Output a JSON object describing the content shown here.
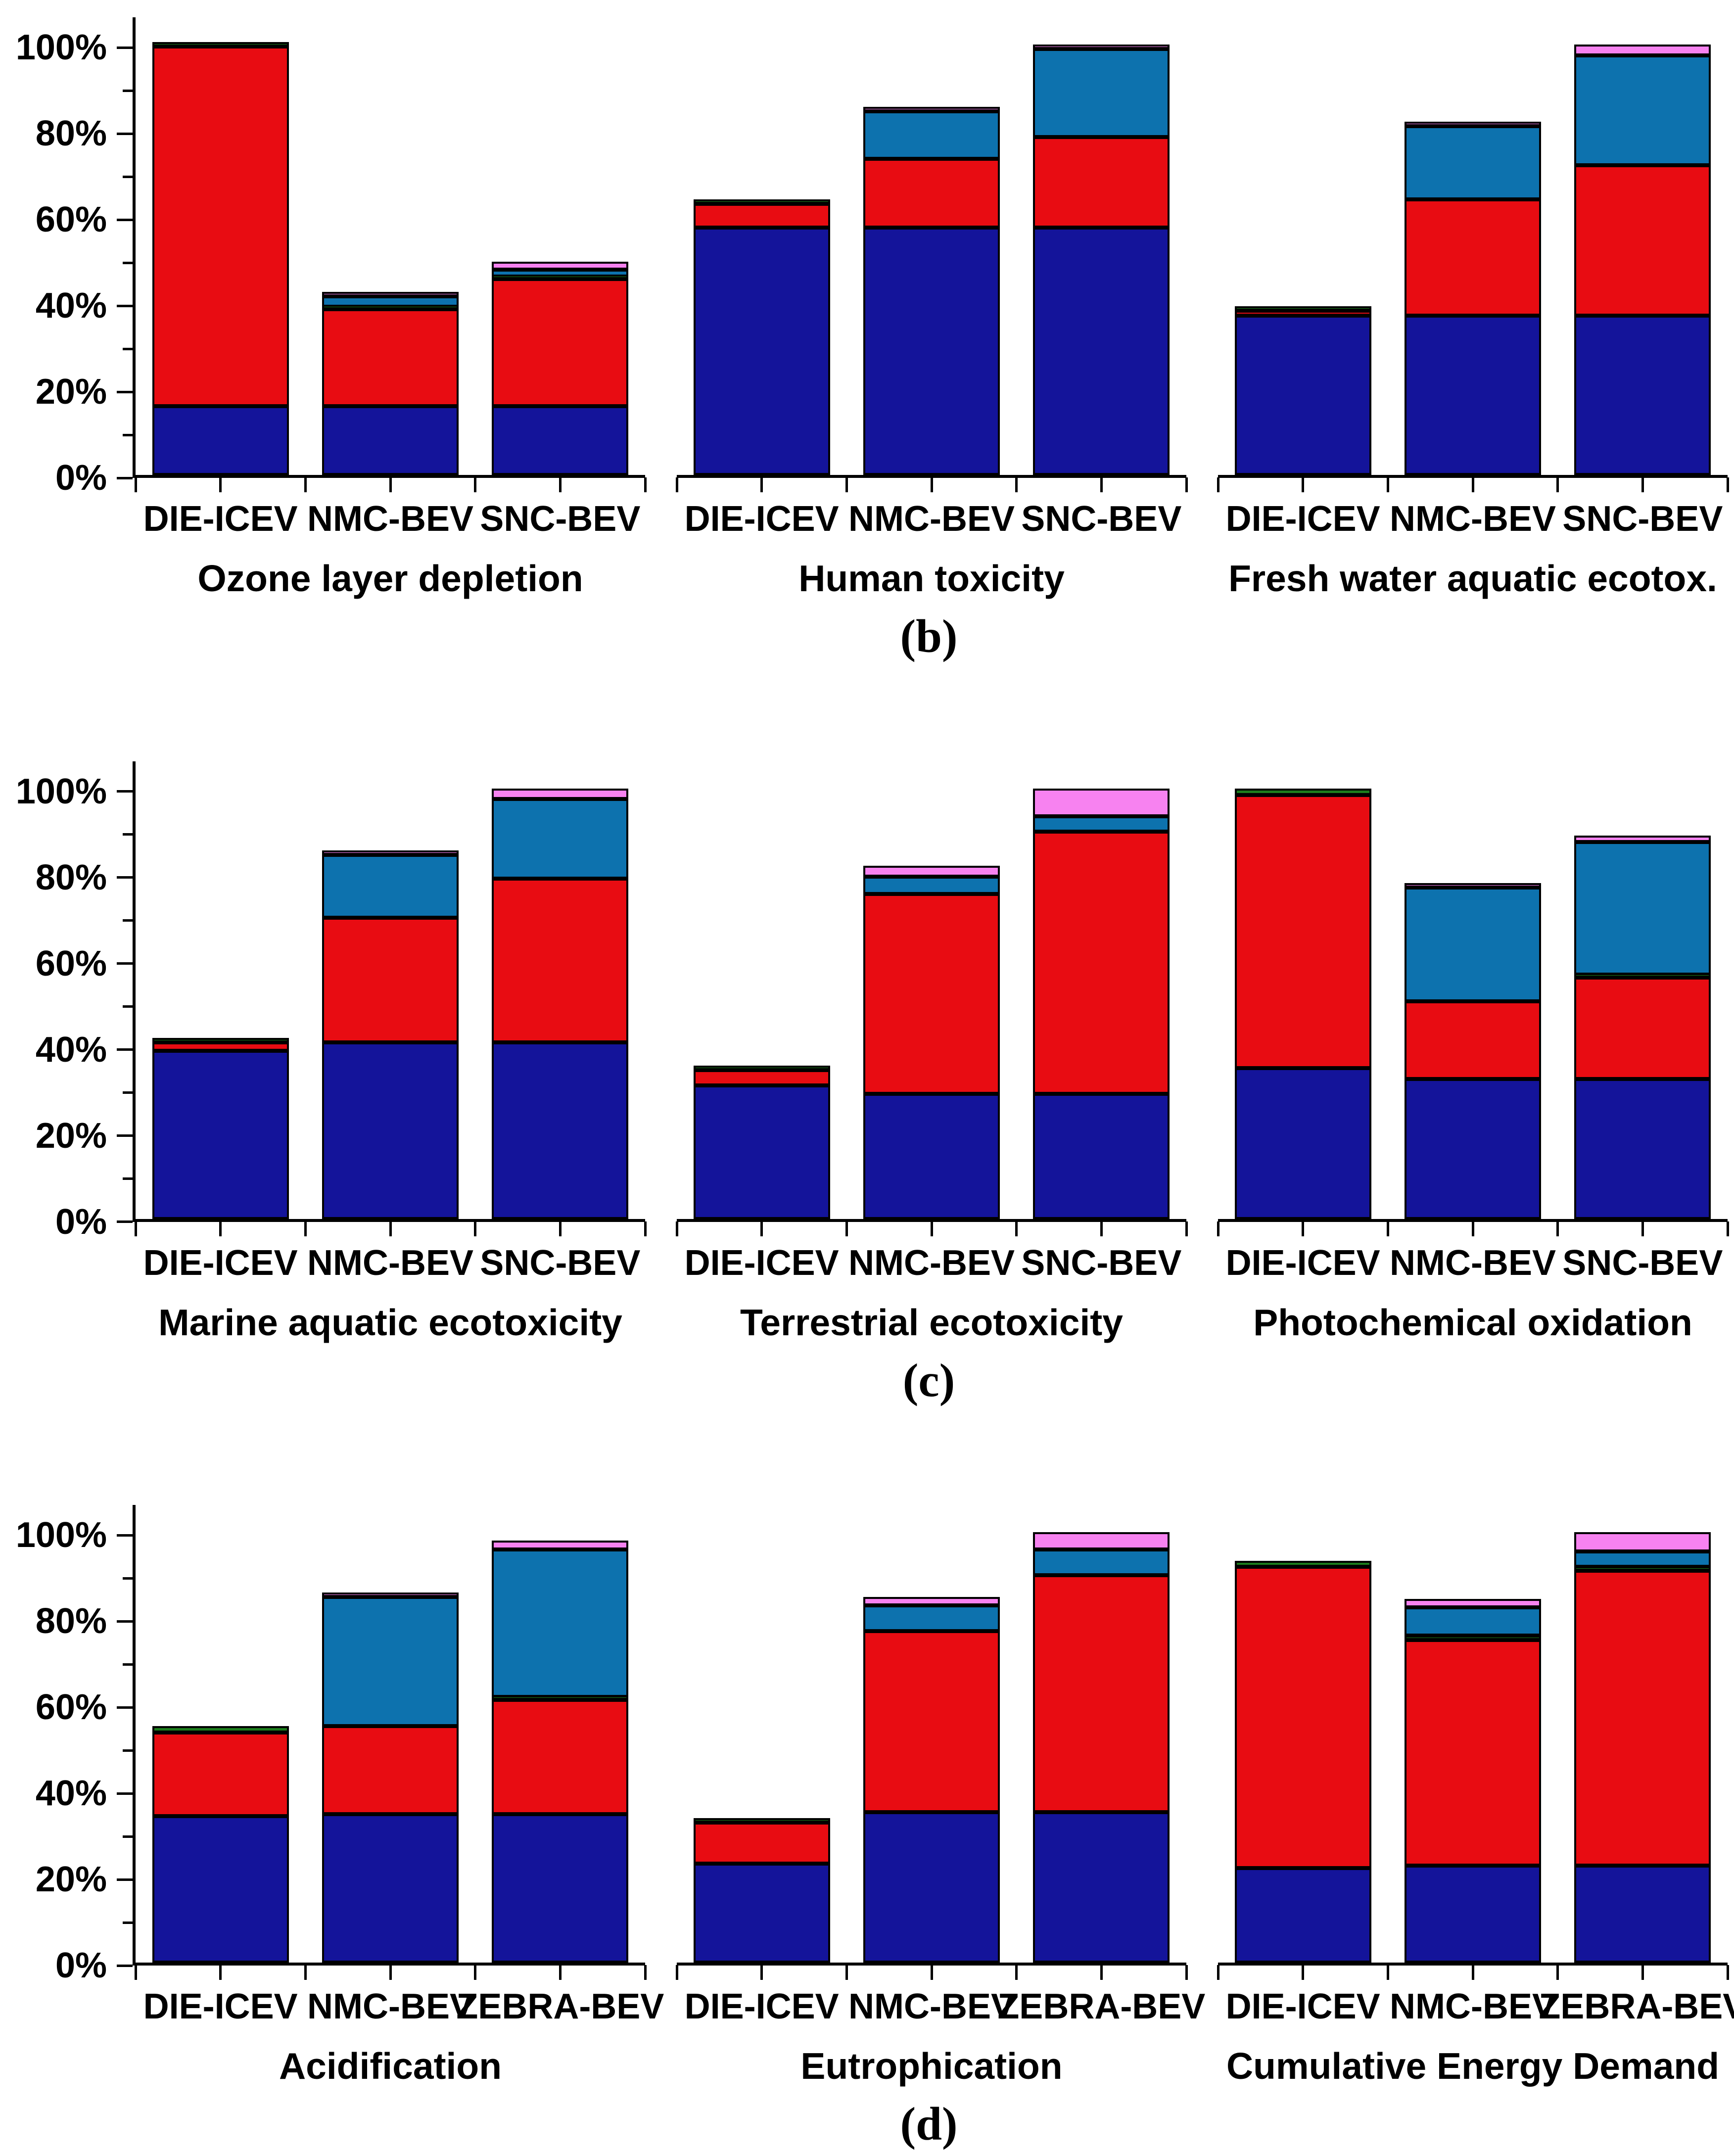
{
  "y_axis": {
    "tick_labels": [
      "0%",
      "20%",
      "40%",
      "60%",
      "80%",
      "100%"
    ],
    "major_step": 20,
    "minor_step": 10
  },
  "colors": {
    "navy": "#14149A",
    "red": "#E80C12",
    "green": "#1C7C1C",
    "steel_blue": "#0D72AE",
    "magenta_pink": "#F782F0",
    "axis": "#000000"
  },
  "rows": [
    {
      "id": "b",
      "sub_label": "(b)",
      "chart_indexes": [
        0,
        1,
        2
      ]
    },
    {
      "id": "c",
      "sub_label": "(c)",
      "chart_indexes": [
        3,
        4,
        5
      ]
    },
    {
      "id": "d",
      "sub_label": "(d)",
      "chart_indexes": [
        6,
        7,
        8
      ]
    }
  ],
  "chart_data": [
    {
      "type": "bar",
      "stacked": true,
      "title": "Ozone layer depletion",
      "ylim": [
        0,
        100
      ],
      "grid": false,
      "legend": "none",
      "categories": [
        "DIE-ICEV",
        "NMC-BEV",
        "SNC-BEV"
      ],
      "series": [
        {
          "name": "navy",
          "color": "#14149A",
          "values": [
            16,
            16,
            16
          ]
        },
        {
          "name": "red",
          "color": "#E80C12",
          "values": [
            83.5,
            22.5,
            29.5
          ]
        },
        {
          "name": "green",
          "color": "#1C7C1C",
          "values": [
            1,
            0.6,
            0.6
          ]
        },
        {
          "name": "steel-blue",
          "color": "#0D72AE",
          "values": [
            0,
            2.4,
            1.6
          ]
        },
        {
          "name": "magenta-pink",
          "color": "#F782F0",
          "values": [
            0,
            0.8,
            1.8
          ]
        }
      ]
    },
    {
      "type": "bar",
      "stacked": true,
      "title": "Human toxicity",
      "ylim": [
        0,
        100
      ],
      "grid": false,
      "legend": "none",
      "categories": [
        "DIE-ICEV",
        "NMC-BEV",
        "SNC-BEV"
      ],
      "series": [
        {
          "name": "navy",
          "color": "#14149A",
          "values": [
            57.5,
            57.5,
            57.5
          ]
        },
        {
          "name": "red",
          "color": "#E80C12",
          "values": [
            5.5,
            16,
            21
          ]
        },
        {
          "name": "green",
          "color": "#1C7C1C",
          "values": [
            0.5,
            0,
            0
          ]
        },
        {
          "name": "steel-blue",
          "color": "#0D72AE",
          "values": [
            0,
            11,
            20.5
          ]
        },
        {
          "name": "magenta-pink",
          "color": "#F782F0",
          "values": [
            0,
            0.5,
            1
          ]
        }
      ]
    },
    {
      "type": "bar",
      "stacked": true,
      "title": "Fresh water aquatic ecotox.",
      "ylim": [
        0,
        100
      ],
      "grid": false,
      "legend": "none",
      "categories": [
        "DIE-ICEV",
        "NMC-BEV",
        "SNC-BEV"
      ],
      "series": [
        {
          "name": "navy",
          "color": "#14149A",
          "values": [
            37,
            37,
            37
          ]
        },
        {
          "name": "red",
          "color": "#E80C12",
          "values": [
            1.2,
            27,
            35
          ]
        },
        {
          "name": "green",
          "color": "#1C7C1C",
          "values": [
            0.8,
            0,
            0
          ]
        },
        {
          "name": "steel-blue",
          "color": "#0D72AE",
          "values": [
            0,
            17,
            25.5
          ]
        },
        {
          "name": "magenta-pink",
          "color": "#F782F0",
          "values": [
            0,
            1,
            2.5
          ]
        }
      ]
    },
    {
      "type": "bar",
      "stacked": true,
      "title": "Marine aquatic ecotoxicity",
      "ylim": [
        0,
        100
      ],
      "grid": false,
      "legend": "none",
      "categories": [
        "DIE-ICEV",
        "NMC-BEV",
        "SNC-BEV"
      ],
      "series": [
        {
          "name": "navy",
          "color": "#14149A",
          "values": [
            39,
            41,
            41
          ]
        },
        {
          "name": "red",
          "color": "#E80C12",
          "values": [
            2,
            29,
            38
          ]
        },
        {
          "name": "green",
          "color": "#1C7C1C",
          "values": [
            0.5,
            0,
            0
          ]
        },
        {
          "name": "steel-blue",
          "color": "#0D72AE",
          "values": [
            0,
            14.5,
            18.5
          ]
        },
        {
          "name": "magenta-pink",
          "color": "#F782F0",
          "values": [
            0,
            1,
            2.5
          ]
        }
      ]
    },
    {
      "type": "bar",
      "stacked": true,
      "title": "Terrestrial ecotoxicity",
      "ylim": [
        0,
        100
      ],
      "grid": false,
      "legend": "none",
      "categories": [
        "DIE-ICEV",
        "NMC-BEV",
        "SNC-BEV"
      ],
      "series": [
        {
          "name": "navy",
          "color": "#14149A",
          "values": [
            31,
            29,
            29
          ]
        },
        {
          "name": "red",
          "color": "#E80C12",
          "values": [
            3.5,
            46.5,
            61
          ]
        },
        {
          "name": "green",
          "color": "#1C7C1C",
          "values": [
            0.5,
            0,
            0
          ]
        },
        {
          "name": "steel-blue",
          "color": "#0D72AE",
          "values": [
            0,
            4,
            3.5
          ]
        },
        {
          "name": "magenta-pink",
          "color": "#F782F0",
          "values": [
            0,
            2.5,
            6.5
          ]
        }
      ]
    },
    {
      "type": "bar",
      "stacked": true,
      "title": "Photochemical oxidation",
      "ylim": [
        0,
        100
      ],
      "grid": false,
      "legend": "none",
      "categories": [
        "DIE-ICEV",
        "NMC-BEV",
        "SNC-BEV"
      ],
      "series": [
        {
          "name": "navy",
          "color": "#14149A",
          "values": [
            35,
            32.5,
            32.5
          ]
        },
        {
          "name": "red",
          "color": "#E80C12",
          "values": [
            63.5,
            18,
            23.5
          ]
        },
        {
          "name": "green",
          "color": "#1C7C1C",
          "values": [
            1.5,
            0,
            0.7
          ]
        },
        {
          "name": "steel-blue",
          "color": "#0D72AE",
          "values": [
            0,
            26.5,
            30.8
          ]
        },
        {
          "name": "magenta-pink",
          "color": "#F782F0",
          "values": [
            0,
            1,
            1.5
          ]
        }
      ]
    },
    {
      "type": "bar",
      "stacked": true,
      "title": "Acidification",
      "ylim": [
        0,
        100
      ],
      "grid": false,
      "legend": "none",
      "categories": [
        "DIE-ICEV",
        "NMC-BEV",
        "ZEBRA-BEV"
      ],
      "series": [
        {
          "name": "navy",
          "color": "#14149A",
          "values": [
            34,
            34.5,
            34.5
          ]
        },
        {
          "name": "red",
          "color": "#E80C12",
          "values": [
            19.5,
            20.5,
            26.5
          ]
        },
        {
          "name": "green",
          "color": "#1C7C1C",
          "values": [
            1.5,
            0,
            0.7
          ]
        },
        {
          "name": "steel-blue",
          "color": "#0D72AE",
          "values": [
            0,
            30,
            34.3
          ]
        },
        {
          "name": "magenta-pink",
          "color": "#F782F0",
          "values": [
            0,
            1,
            2
          ]
        }
      ]
    },
    {
      "type": "bar",
      "stacked": true,
      "title": "Eutrophication",
      "ylim": [
        0,
        100
      ],
      "grid": false,
      "legend": "none",
      "categories": [
        "DIE-ICEV",
        "NMC-BEV",
        "ZEBRA-BEV"
      ],
      "series": [
        {
          "name": "navy",
          "color": "#14149A",
          "values": [
            23,
            35,
            35
          ]
        },
        {
          "name": "red",
          "color": "#E80C12",
          "values": [
            9.5,
            42,
            55
          ]
        },
        {
          "name": "green",
          "color": "#1C7C1C",
          "values": [
            0.5,
            0,
            0
          ]
        },
        {
          "name": "steel-blue",
          "color": "#0D72AE",
          "values": [
            0,
            6,
            6
          ]
        },
        {
          "name": "magenta-pink",
          "color": "#F782F0",
          "values": [
            0,
            2,
            4
          ]
        }
      ]
    },
    {
      "type": "bar",
      "stacked": true,
      "title": "Cumulative Energy Demand",
      "ylim": [
        0,
        100
      ],
      "grid": false,
      "legend": "none",
      "categories": [
        "DIE-ICEV",
        "NMC-BEV",
        "ZEBRA-BEV"
      ],
      "series": [
        {
          "name": "navy",
          "color": "#14149A",
          "values": [
            22,
            22.5,
            22.5
          ]
        },
        {
          "name": "red",
          "color": "#E80C12",
          "values": [
            70,
            52.5,
            68.5
          ]
        },
        {
          "name": "green",
          "color": "#1C7C1C",
          "values": [
            1.3,
            1,
            1
          ]
        },
        {
          "name": "steel-blue",
          "color": "#0D72AE",
          "values": [
            0,
            6.5,
            3.5
          ]
        },
        {
          "name": "magenta-pink",
          "color": "#F782F0",
          "values": [
            0,
            2,
            4.5
          ]
        }
      ]
    }
  ]
}
